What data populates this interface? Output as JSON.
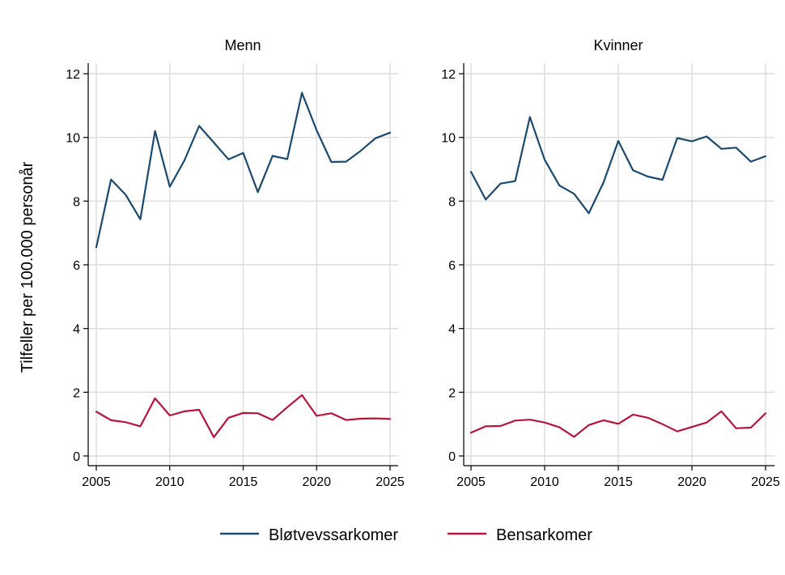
{
  "chart_data": {
    "type": "line",
    "ylabel": "Tilfeller per 100.000 personår",
    "xlim": [
      2005,
      2025
    ],
    "ylim": [
      0,
      12
    ],
    "x_ticks": [
      2005,
      2010,
      2015,
      2020,
      2025
    ],
    "y_ticks": [
      0,
      2,
      4,
      6,
      8,
      10,
      12
    ],
    "grid": true,
    "legend_position": "bottom",
    "colors": {
      "Bløtvevssarkomer": "#1b4a6e",
      "Bensarkomer": "#b5163b"
    },
    "x": [
      2005,
      2006,
      2007,
      2008,
      2009,
      2010,
      2011,
      2012,
      2013,
      2014,
      2015,
      2016,
      2017,
      2018,
      2019,
      2020,
      2021,
      2022,
      2023,
      2024,
      2025
    ],
    "panels": [
      {
        "title": "Menn",
        "series": [
          {
            "name": "Bløtvevssarkomer",
            "values": [
              6.55,
              8.68,
              8.2,
              7.43,
              10.2,
              8.45,
              9.28,
              10.36,
              9.84,
              9.31,
              9.51,
              8.28,
              9.42,
              9.32,
              11.4,
              10.22,
              9.23,
              9.24,
              9.58,
              9.97,
              10.15
            ]
          },
          {
            "name": "Bensarkomer",
            "values": [
              1.39,
              1.12,
              1.06,
              0.93,
              1.81,
              1.27,
              1.4,
              1.45,
              0.59,
              1.2,
              1.35,
              1.34,
              1.13,
              1.53,
              1.91,
              1.26,
              1.34,
              1.13,
              1.17,
              1.18,
              1.16
            ]
          }
        ]
      },
      {
        "title": "Kvinner",
        "series": [
          {
            "name": "Bløtvevssarkomer",
            "values": [
              8.92,
              8.05,
              8.55,
              8.63,
              10.64,
              9.3,
              8.49,
              8.23,
              7.62,
              8.59,
              9.89,
              8.97,
              8.77,
              8.67,
              9.98,
              9.88,
              10.03,
              9.64,
              9.68,
              9.24,
              9.41
            ]
          },
          {
            "name": "Bensarkomer",
            "values": [
              0.73,
              0.93,
              0.94,
              1.11,
              1.14,
              1.05,
              0.9,
              0.6,
              0.97,
              1.12,
              1.01,
              1.3,
              1.2,
              1.0,
              0.77,
              0.91,
              1.05,
              1.4,
              0.87,
              0.89,
              1.34
            ]
          }
        ]
      }
    ]
  }
}
